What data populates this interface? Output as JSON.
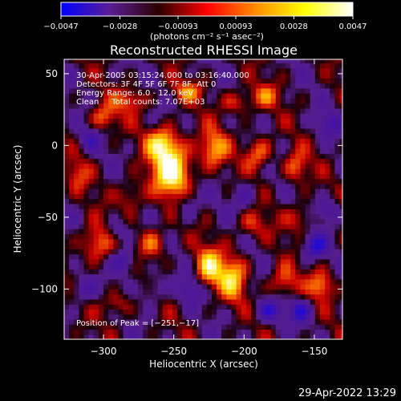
{
  "chart_data": {
    "type": "heatmap",
    "title": "Reconstructed RHESSI Image",
    "xlabel": "Heliocentric X (arcsec)",
    "ylabel": "Heliocentric Y (arcsec)",
    "xlim": [
      -328,
      -130
    ],
    "ylim": [
      -135,
      60
    ],
    "x_ticks": [
      -300,
      -250,
      -200,
      -150
    ],
    "y_ticks": [
      50,
      0,
      -50,
      -100
    ],
    "x_tick_labels": [
      "−300",
      "−250",
      "−200",
      "−150"
    ],
    "y_tick_labels": [
      "50",
      "0",
      "−50",
      "−100"
    ],
    "colorbar": {
      "range": [
        -0.0047,
        0.0047
      ],
      "ticks": [
        -0.0047,
        -0.0028,
        -0.00093,
        0.00093,
        0.0028,
        0.0047
      ],
      "tick_labels": [
        "−0.0047",
        "−0.0028",
        "−0.00093",
        "0.00093",
        "0.0028",
        "0.0047"
      ],
      "units_label": "(photons cm⁻² s⁻¹ asec⁻²)",
      "colors": [
        "#0000ff",
        "#5a1e96",
        "#2a0000",
        "#ff0000",
        "#ff8c00",
        "#ffff00",
        "#ffffff"
      ]
    },
    "annotations": [
      "30-Apr-2005 03:15:24.000 to 03:16:40.000",
      "Detectors: 3F 4F 5F 6F 7F 8F, Att 0",
      "Energy Range: 6.0 - 12.0 keV",
      "Clean     Total counts: 7.07E+03"
    ],
    "peak_label": "Position of Peak = [−251,−17]",
    "peak_position": [
      -251,
      -17
    ],
    "grid": false,
    "legend": "none",
    "bright_sources": [
      {
        "x": -251,
        "y": -17,
        "v": 1.0,
        "sx": 10,
        "sy": 13
      },
      {
        "x": -258,
        "y": 2,
        "v": 0.7,
        "sx": 8,
        "sy": 8
      },
      {
        "x": -222,
        "y": -2,
        "v": 0.62,
        "sx": 7,
        "sy": 9
      },
      {
        "x": -190,
        "y": -5,
        "v": 0.55,
        "sx": 7,
        "sy": 8
      },
      {
        "x": -163,
        "y": -15,
        "v": 0.5,
        "sx": 6,
        "sy": 8
      },
      {
        "x": -300,
        "y": 20,
        "v": 0.5,
        "sx": 7,
        "sy": 7
      },
      {
        "x": -280,
        "y": 32,
        "v": 0.45,
        "sx": 8,
        "sy": 6
      },
      {
        "x": -240,
        "y": 38,
        "v": 0.45,
        "sx": 8,
        "sy": 5
      },
      {
        "x": -205,
        "y": 30,
        "v": 0.42,
        "sx": 8,
        "sy": 6
      },
      {
        "x": -185,
        "y": 35,
        "v": 0.4,
        "sx": 7,
        "sy": 6
      },
      {
        "x": -305,
        "y": -68,
        "v": 0.6,
        "sx": 8,
        "sy": 9
      },
      {
        "x": -265,
        "y": -68,
        "v": 0.5,
        "sx": 7,
        "sy": 8
      },
      {
        "x": -225,
        "y": -85,
        "v": 0.75,
        "sx": 7,
        "sy": 10
      },
      {
        "x": -208,
        "y": -92,
        "v": 0.7,
        "sx": 7,
        "sy": 11
      },
      {
        "x": -172,
        "y": -95,
        "v": 0.5,
        "sx": 7,
        "sy": 8
      },
      {
        "x": -145,
        "y": -97,
        "v": 0.55,
        "sx": 6,
        "sy": 7
      },
      {
        "x": -290,
        "y": -110,
        "v": 0.4,
        "sx": 7,
        "sy": 6
      },
      {
        "x": -160,
        "y": -50,
        "v": 0.4,
        "sx": 7,
        "sy": 7
      },
      {
        "x": -195,
        "y": -55,
        "v": 0.35,
        "sx": 8,
        "sy": 7
      },
      {
        "x": -280,
        "y": -35,
        "v": 0.4,
        "sx": 7,
        "sy": 8
      },
      {
        "x": -318,
        "y": -20,
        "v": 0.35,
        "sx": 6,
        "sy": 8
      }
    ],
    "dark_sources": [
      {
        "x": -285,
        "y": -80,
        "v": -0.55,
        "sx": 6,
        "sy": 6
      },
      {
        "x": -290,
        "y": -60,
        "v": -0.4,
        "sx": 6,
        "sy": 6
      },
      {
        "x": -182,
        "y": -115,
        "v": -0.5,
        "sx": 7,
        "sy": 6
      },
      {
        "x": -160,
        "y": -115,
        "v": -0.5,
        "sx": 6,
        "sy": 6
      },
      {
        "x": -150,
        "y": -70,
        "v": -0.6,
        "sx": 6,
        "sy": 6
      },
      {
        "x": -140,
        "y": -45,
        "v": -0.45,
        "sx": 6,
        "sy": 6
      },
      {
        "x": -315,
        "y": -100,
        "v": -0.45,
        "sx": 6,
        "sy": 6
      },
      {
        "x": -240,
        "y": -40,
        "v": -0.35,
        "sx": 6,
        "sy": 8
      },
      {
        "x": -200,
        "y": -35,
        "v": -0.35,
        "sx": 6,
        "sy": 8
      },
      {
        "x": -310,
        "y": 5,
        "v": -0.35,
        "sx": 6,
        "sy": 6
      },
      {
        "x": -140,
        "y": 15,
        "v": -0.4,
        "sx": 6,
        "sy": 6
      },
      {
        "x": -238,
        "y": -100,
        "v": -0.4,
        "sx": 6,
        "sy": 7
      },
      {
        "x": -265,
        "y": -100,
        "v": -0.35,
        "sx": 6,
        "sy": 7
      }
    ]
  },
  "footer_timestamp": "29-Apr-2022 13:29"
}
